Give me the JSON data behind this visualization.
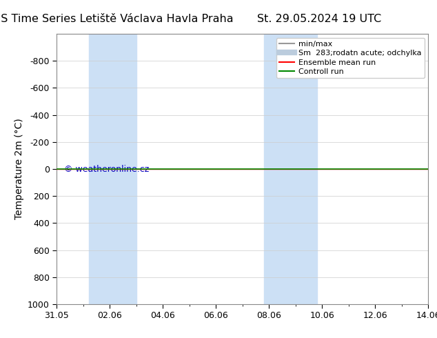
{
  "title_left": "ENS Time Series Letiště Václava Havla Praha",
  "title_right": "St. 29.05.2024 19 UTC",
  "ylabel": "Temperature 2m (°C)",
  "ylim": [
    -1000,
    1000
  ],
  "yticks": [
    -800,
    -600,
    -400,
    -200,
    0,
    200,
    400,
    600,
    800,
    1000
  ],
  "x_start": 0,
  "x_end": 14,
  "xtick_labels": [
    "31.05",
    "02.06",
    "04.06",
    "06.06",
    "08.06",
    "10.06",
    "12.06",
    "14.06"
  ],
  "xtick_positions": [
    0,
    2,
    4,
    6,
    8,
    10,
    12,
    14
  ],
  "shaded_regions": [
    [
      1.2,
      2.0
    ],
    [
      2.0,
      3.0
    ],
    [
      7.8,
      8.8
    ],
    [
      8.8,
      9.8
    ]
  ],
  "shaded_color": "#cce0f5",
  "green_line_y": 0,
  "red_line_y": 0,
  "green_line_color": "#008800",
  "red_line_color": "#ff0000",
  "watermark": "© weatheronline.cz",
  "watermark_color": "#0000bb",
  "legend_items": [
    {
      "label": "min/max",
      "color": "#999999",
      "lw": 1.5
    },
    {
      "label": "Sm  283;rodatn acute; odchylka",
      "color": "#bbccdd",
      "lw": 6
    },
    {
      "label": "Ensemble mean run",
      "color": "#ff0000",
      "lw": 1.5
    },
    {
      "label": "Controll run",
      "color": "#008800",
      "lw": 1.5
    }
  ],
  "background_color": "#ffffff",
  "grid_color": "#cccccc",
  "title_fontsize": 11.5,
  "axis_fontsize": 10,
  "tick_fontsize": 9
}
